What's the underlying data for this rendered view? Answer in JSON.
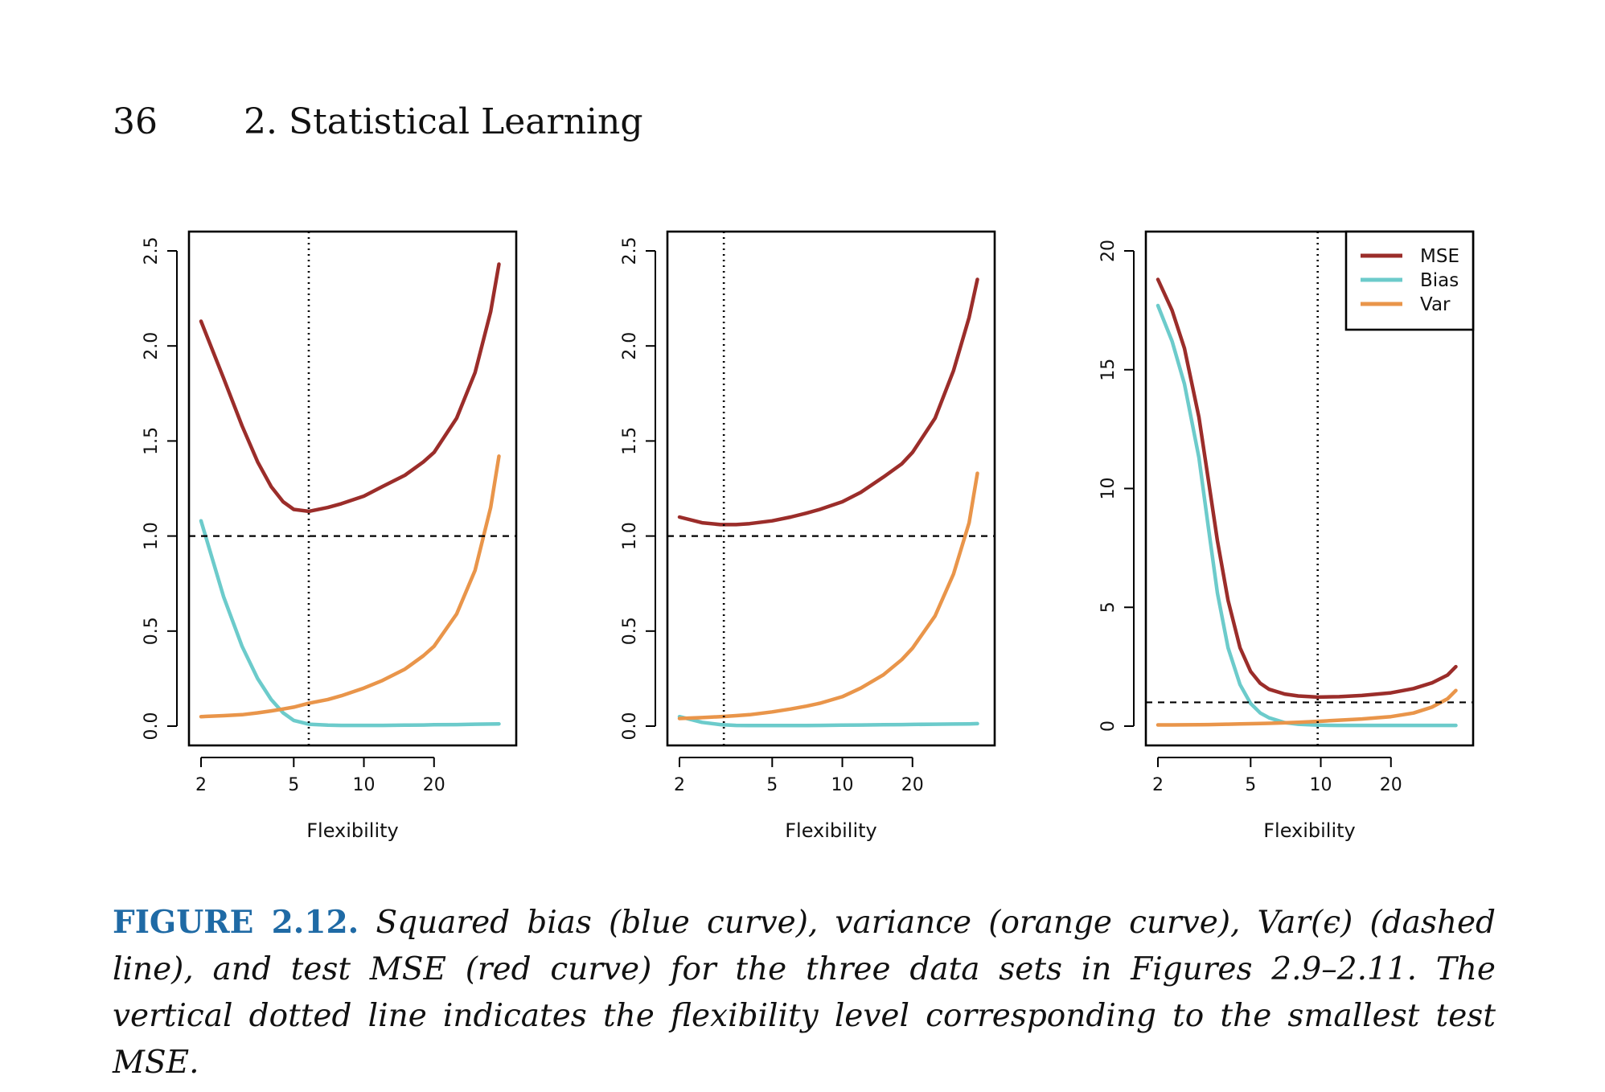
{
  "page": {
    "number": "36",
    "chapter": "2.  Statistical Learning"
  },
  "colors": {
    "mse": "#9b2d2a",
    "bias": "#6ccbcb",
    "var": "#e9954a",
    "caption_label": "#1f6aa5"
  },
  "caption": {
    "label": "FIGURE 2.12.",
    "text": "Squared bias (blue curve), variance (orange curve), Var(ϵ) (dashed line), and test MSE (red curve) for the three data sets in Figures 2.9–2.11. The vertical dotted line indicates the flexibility level corresponding to the smallest test MSE."
  },
  "chart_data": [
    {
      "type": "line",
      "xlabel": "Flexibility",
      "ylabel": "",
      "x_scale": "log",
      "xlim": [
        2,
        40
      ],
      "ylim": [
        0,
        2.5
      ],
      "x_ticks": [
        2,
        5,
        10,
        20
      ],
      "y_ticks": [
        0.0,
        0.5,
        1.0,
        1.5,
        2.0,
        2.5
      ],
      "y_tick_labels": [
        "0.0",
        "0.5",
        "1.0",
        "1.5",
        "2.0",
        "2.5"
      ],
      "hline": 1.0,
      "vline": 5.8,
      "legend": null,
      "x": [
        2,
        2.5,
        3,
        3.5,
        4,
        4.5,
        5,
        5.8,
        7,
        8,
        10,
        12,
        15,
        18,
        20,
        25,
        30,
        35,
        38
      ],
      "series": [
        {
          "key": "mse",
          "values": [
            2.13,
            1.83,
            1.58,
            1.39,
            1.26,
            1.18,
            1.14,
            1.13,
            1.15,
            1.17,
            1.21,
            1.26,
            1.32,
            1.39,
            1.44,
            1.62,
            1.86,
            2.18,
            2.43
          ]
        },
        {
          "key": "bias",
          "values": [
            1.08,
            0.68,
            0.42,
            0.25,
            0.14,
            0.07,
            0.03,
            0.01,
            0.005,
            0.004,
            0.004,
            0.004,
            0.005,
            0.006,
            0.007,
            0.008,
            0.01,
            0.011,
            0.012
          ]
        },
        {
          "key": "var",
          "values": [
            0.05,
            0.055,
            0.06,
            0.07,
            0.08,
            0.09,
            0.1,
            0.12,
            0.14,
            0.16,
            0.2,
            0.24,
            0.3,
            0.37,
            0.42,
            0.59,
            0.82,
            1.15,
            1.42
          ]
        }
      ]
    },
    {
      "type": "line",
      "xlabel": "Flexibility",
      "ylabel": "",
      "x_scale": "log",
      "xlim": [
        2,
        40
      ],
      "ylim": [
        0,
        2.5
      ],
      "x_ticks": [
        2,
        5,
        10,
        20
      ],
      "y_ticks": [
        0.0,
        0.5,
        1.0,
        1.5,
        2.0,
        2.5
      ],
      "y_tick_labels": [
        "0.0",
        "0.5",
        "1.0",
        "1.5",
        "2.0",
        "2.5"
      ],
      "hline": 1.0,
      "vline": 3.1,
      "legend": null,
      "x": [
        2,
        2.5,
        3,
        3.5,
        4,
        5,
        6,
        7,
        8,
        10,
        12,
        15,
        18,
        20,
        25,
        30,
        35,
        38
      ],
      "series": [
        {
          "key": "mse",
          "values": [
            1.1,
            1.07,
            1.06,
            1.06,
            1.065,
            1.08,
            1.1,
            1.12,
            1.14,
            1.18,
            1.23,
            1.31,
            1.38,
            1.44,
            1.62,
            1.87,
            2.15,
            2.35
          ]
        },
        {
          "key": "bias",
          "values": [
            0.05,
            0.02,
            0.008,
            0.004,
            0.003,
            0.003,
            0.003,
            0.003,
            0.004,
            0.005,
            0.006,
            0.007,
            0.008,
            0.009,
            0.01,
            0.011,
            0.012,
            0.013
          ]
        },
        {
          "key": "var",
          "values": [
            0.04,
            0.045,
            0.05,
            0.055,
            0.06,
            0.075,
            0.09,
            0.105,
            0.12,
            0.155,
            0.2,
            0.27,
            0.35,
            0.41,
            0.58,
            0.8,
            1.07,
            1.33
          ]
        }
      ]
    },
    {
      "type": "line",
      "xlabel": "Flexibility",
      "ylabel": "",
      "x_scale": "log",
      "xlim": [
        2,
        40
      ],
      "ylim": [
        0,
        20
      ],
      "x_ticks": [
        2,
        5,
        10,
        20
      ],
      "y_ticks": [
        0,
        5,
        10,
        15,
        20
      ],
      "y_tick_labels": [
        "0",
        "5",
        "10",
        "15",
        "20"
      ],
      "hline": 1.0,
      "vline": 9.7,
      "legend": {
        "placement": "top-right",
        "entries": [
          {
            "key": "mse",
            "label": "MSE"
          },
          {
            "key": "bias",
            "label": "Bias"
          },
          {
            "key": "var",
            "label": "Var"
          }
        ]
      },
      "x": [
        2,
        2.3,
        2.6,
        3,
        3.3,
        3.6,
        4,
        4.5,
        5,
        5.5,
        6,
        7,
        8,
        9.7,
        12,
        15,
        20,
        25,
        30,
        35,
        38
      ],
      "series": [
        {
          "key": "mse",
          "values": [
            18.8,
            17.5,
            15.9,
            13.0,
            10.3,
            7.8,
            5.3,
            3.3,
            2.3,
            1.8,
            1.55,
            1.35,
            1.27,
            1.22,
            1.24,
            1.29,
            1.4,
            1.58,
            1.82,
            2.15,
            2.5
          ]
        },
        {
          "key": "bias",
          "values": [
            17.7,
            16.2,
            14.4,
            11.3,
            8.3,
            5.6,
            3.3,
            1.75,
            0.95,
            0.55,
            0.35,
            0.15,
            0.08,
            0.04,
            0.03,
            0.03,
            0.03,
            0.03,
            0.03,
            0.03,
            0.03
          ]
        },
        {
          "key": "var",
          "values": [
            0.05,
            0.05,
            0.055,
            0.06,
            0.065,
            0.07,
            0.08,
            0.09,
            0.1,
            0.11,
            0.12,
            0.14,
            0.16,
            0.2,
            0.25,
            0.3,
            0.4,
            0.55,
            0.8,
            1.15,
            1.5
          ]
        }
      ]
    }
  ]
}
